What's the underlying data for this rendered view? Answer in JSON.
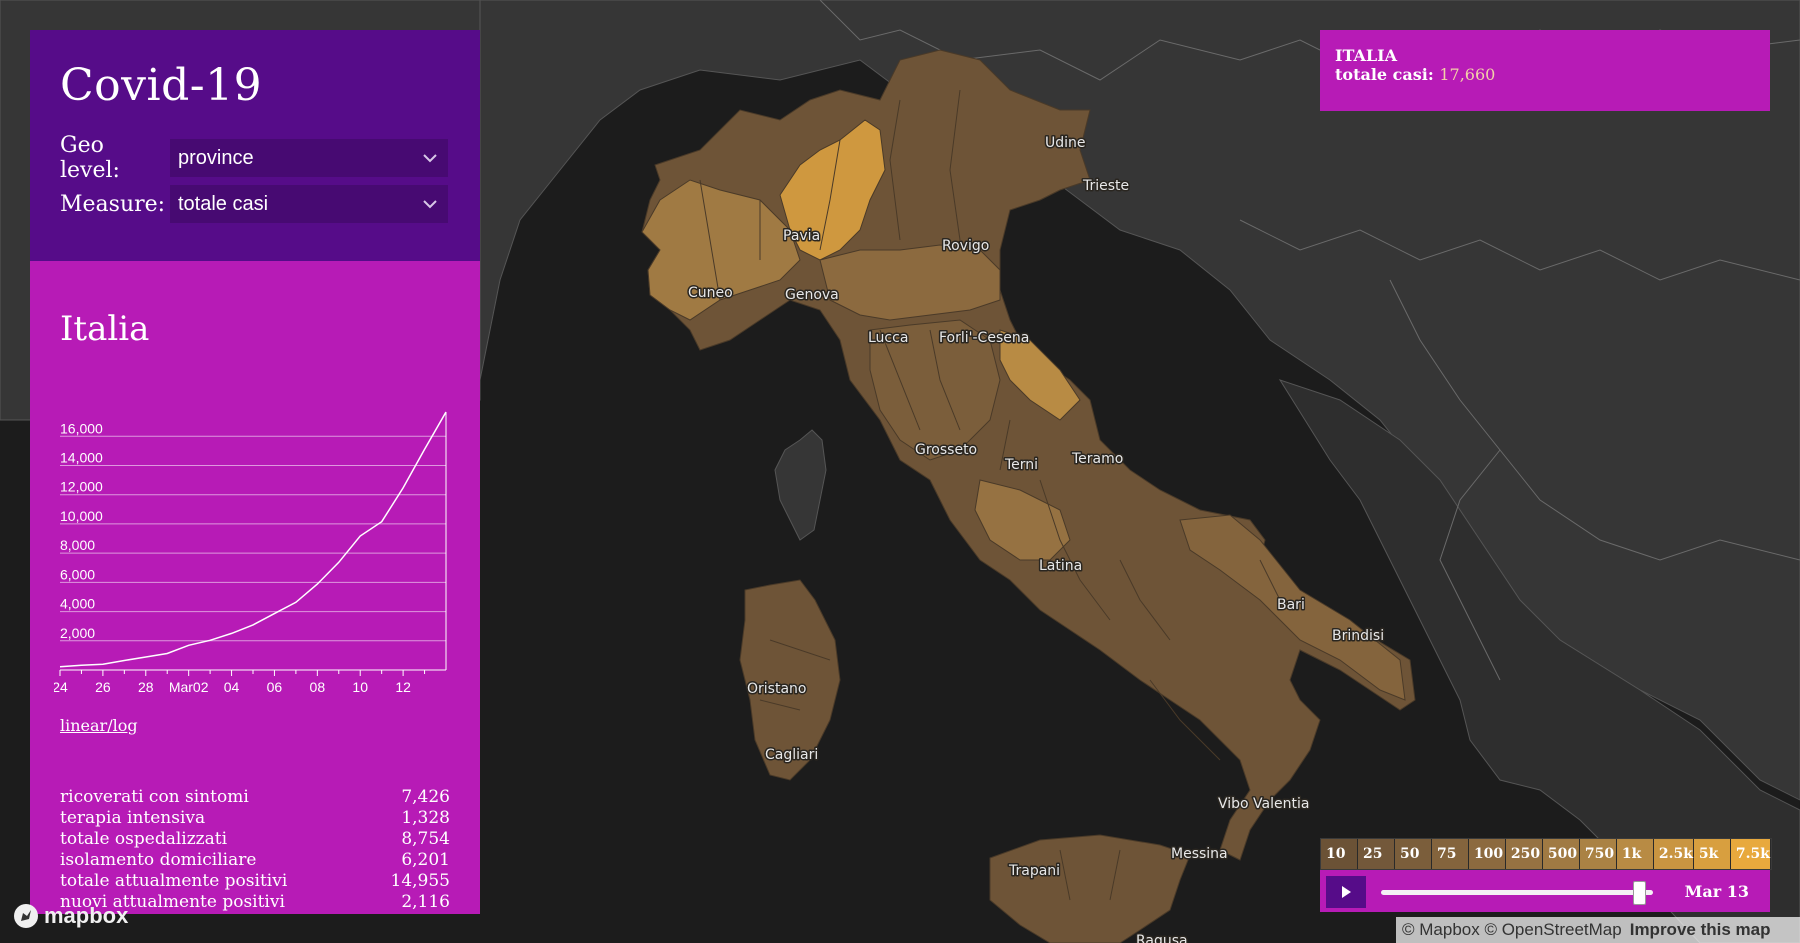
{
  "panel": {
    "title": "Covid-19",
    "geo_level_label": "Geo level:",
    "geo_level_value": "province",
    "measure_label": "Measure:",
    "measure_value": "totale casi",
    "region_title": "Italia",
    "scale_toggle": "linear/log"
  },
  "chart_data": {
    "type": "line",
    "title": "",
    "xlabel": "",
    "ylabel": "",
    "x_ticks": [
      "24",
      "26",
      "28",
      "Mar02",
      "04",
      "06",
      "08",
      "10",
      "12"
    ],
    "y_ticks": [
      "2,000",
      "4,000",
      "6,000",
      "8,000",
      "10,000",
      "12,000",
      "14,000",
      "16,000"
    ],
    "ylim": [
      0,
      17660
    ],
    "x": [
      "Feb 24",
      "Feb 25",
      "Feb 26",
      "Feb 27",
      "Feb 28",
      "Feb 29",
      "Mar 01",
      "Mar 02",
      "Mar 03",
      "Mar 04",
      "Mar 05",
      "Mar 06",
      "Mar 07",
      "Mar 08",
      "Mar 09",
      "Mar 10",
      "Mar 11",
      "Mar 12",
      "Mar 13"
    ],
    "series": [
      {
        "values": [
          229,
          322,
          400,
          650,
          888,
          1128,
          1694,
          2036,
          2502,
          3089,
          3858,
          4636,
          5883,
          7375,
          9172,
          10149,
          12462,
          15113,
          17660
        ]
      }
    ],
    "grid": true,
    "color": "#ffffff"
  },
  "stats": [
    {
      "label": "ricoverati con sintomi",
      "value": "7,426"
    },
    {
      "label": "terapia intensiva",
      "value": "1,328"
    },
    {
      "label": "totale ospedalizzati",
      "value": "8,754"
    },
    {
      "label": "isolamento domiciliare",
      "value": "6,201"
    },
    {
      "label": "totale attualmente positivi",
      "value": "14,955"
    },
    {
      "label": "nuovi attualmente positivi",
      "value": "2,116"
    }
  ],
  "tooltip": {
    "title": "ITALIA",
    "measure_label": "totale casi",
    "value": "17,660"
  },
  "legend": {
    "labels": [
      "10",
      "25",
      "50",
      "75",
      "100",
      "250",
      "500",
      "750",
      "1k",
      "2.5k",
      "5k",
      "7.5k"
    ],
    "colors": [
      "#6b5236",
      "#73583a",
      "#7b5e3b",
      "#84643d",
      "#8c6a3f",
      "#967242",
      "#a07a43",
      "#aa8244",
      "#b88b44",
      "#c99541",
      "#d89f3f",
      "#e8a93d"
    ]
  },
  "timeline": {
    "date": "Mar 13",
    "progress": 0.95
  },
  "map": {
    "cities": [
      "Udine",
      "Trieste",
      "Pavia",
      "Rovigo",
      "Cuneo",
      "Genova",
      "Lucca",
      "Forli'-Cesena",
      "Grosseto",
      "Terni",
      "Teramo",
      "Latina",
      "Bari",
      "Brindisi",
      "Oristano",
      "Cagliari",
      "Vibo Valentia",
      "Messina",
      "Trapani",
      "Ragusa"
    ],
    "colors": {
      "sea": "#1c1c1c",
      "land": "#363636",
      "province_dark": "#6e5437",
      "province_mid": "#8c6a3f",
      "province_light": "#cf983f"
    }
  },
  "attribution": {
    "text": "© Mapbox © OpenStreetMap",
    "improve": "Improve this map",
    "logo": "mapbox"
  }
}
